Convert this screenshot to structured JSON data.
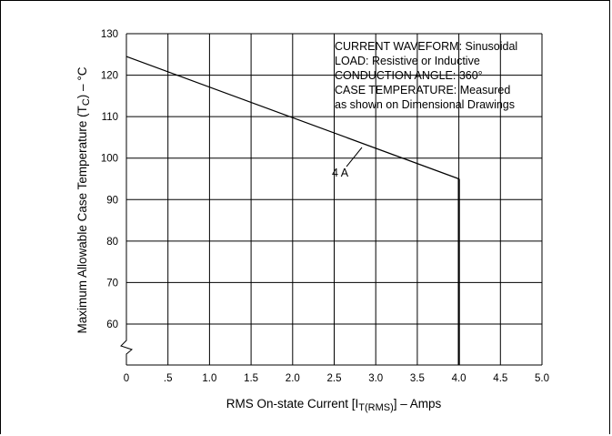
{
  "chart_data": {
    "type": "line",
    "title": "",
    "xlabel": "RMS On-state Current [I",
    "xlabel_sub": "T(RMS)",
    "xlabel_suffix": "] – Amps",
    "ylabel": "Maximum Allowable Case Temperature (T",
    "ylabel_sub": "C",
    "ylabel_suffix": ") – °C",
    "xlim": [
      0,
      5.0
    ],
    "ylim": [
      55,
      130
    ],
    "y_axis_break": true,
    "grid": true,
    "x_ticks": [
      0,
      0.5,
      1.0,
      1.5,
      2.0,
      2.5,
      3.0,
      3.5,
      4.0,
      4.5,
      5.0
    ],
    "x_tick_labels": [
      "0",
      ".5",
      "1.0",
      "1.5",
      "2.0",
      "2.5",
      "3.0",
      "3.5",
      "4.0",
      "4.5",
      "5.0"
    ],
    "y_ticks": [
      60,
      70,
      80,
      90,
      100,
      110,
      120,
      130
    ],
    "y_tick_labels": [
      "60",
      "70",
      "80",
      "90",
      "100",
      "110",
      "120",
      "130"
    ],
    "series": [
      {
        "name": "4 A",
        "x": [
          0,
          4.0
        ],
        "y": [
          124.5,
          95
        ]
      }
    ],
    "annotations": [
      "CURRENT WAVEFORM: Sinusoidal",
      "LOAD: Resistive or Inductive",
      "CONDUCTION ANGLE: 360°",
      "CASE TEMPERATURE: Measured",
      "as shown on Dimensional Drawings"
    ],
    "series_label": "4 A"
  }
}
